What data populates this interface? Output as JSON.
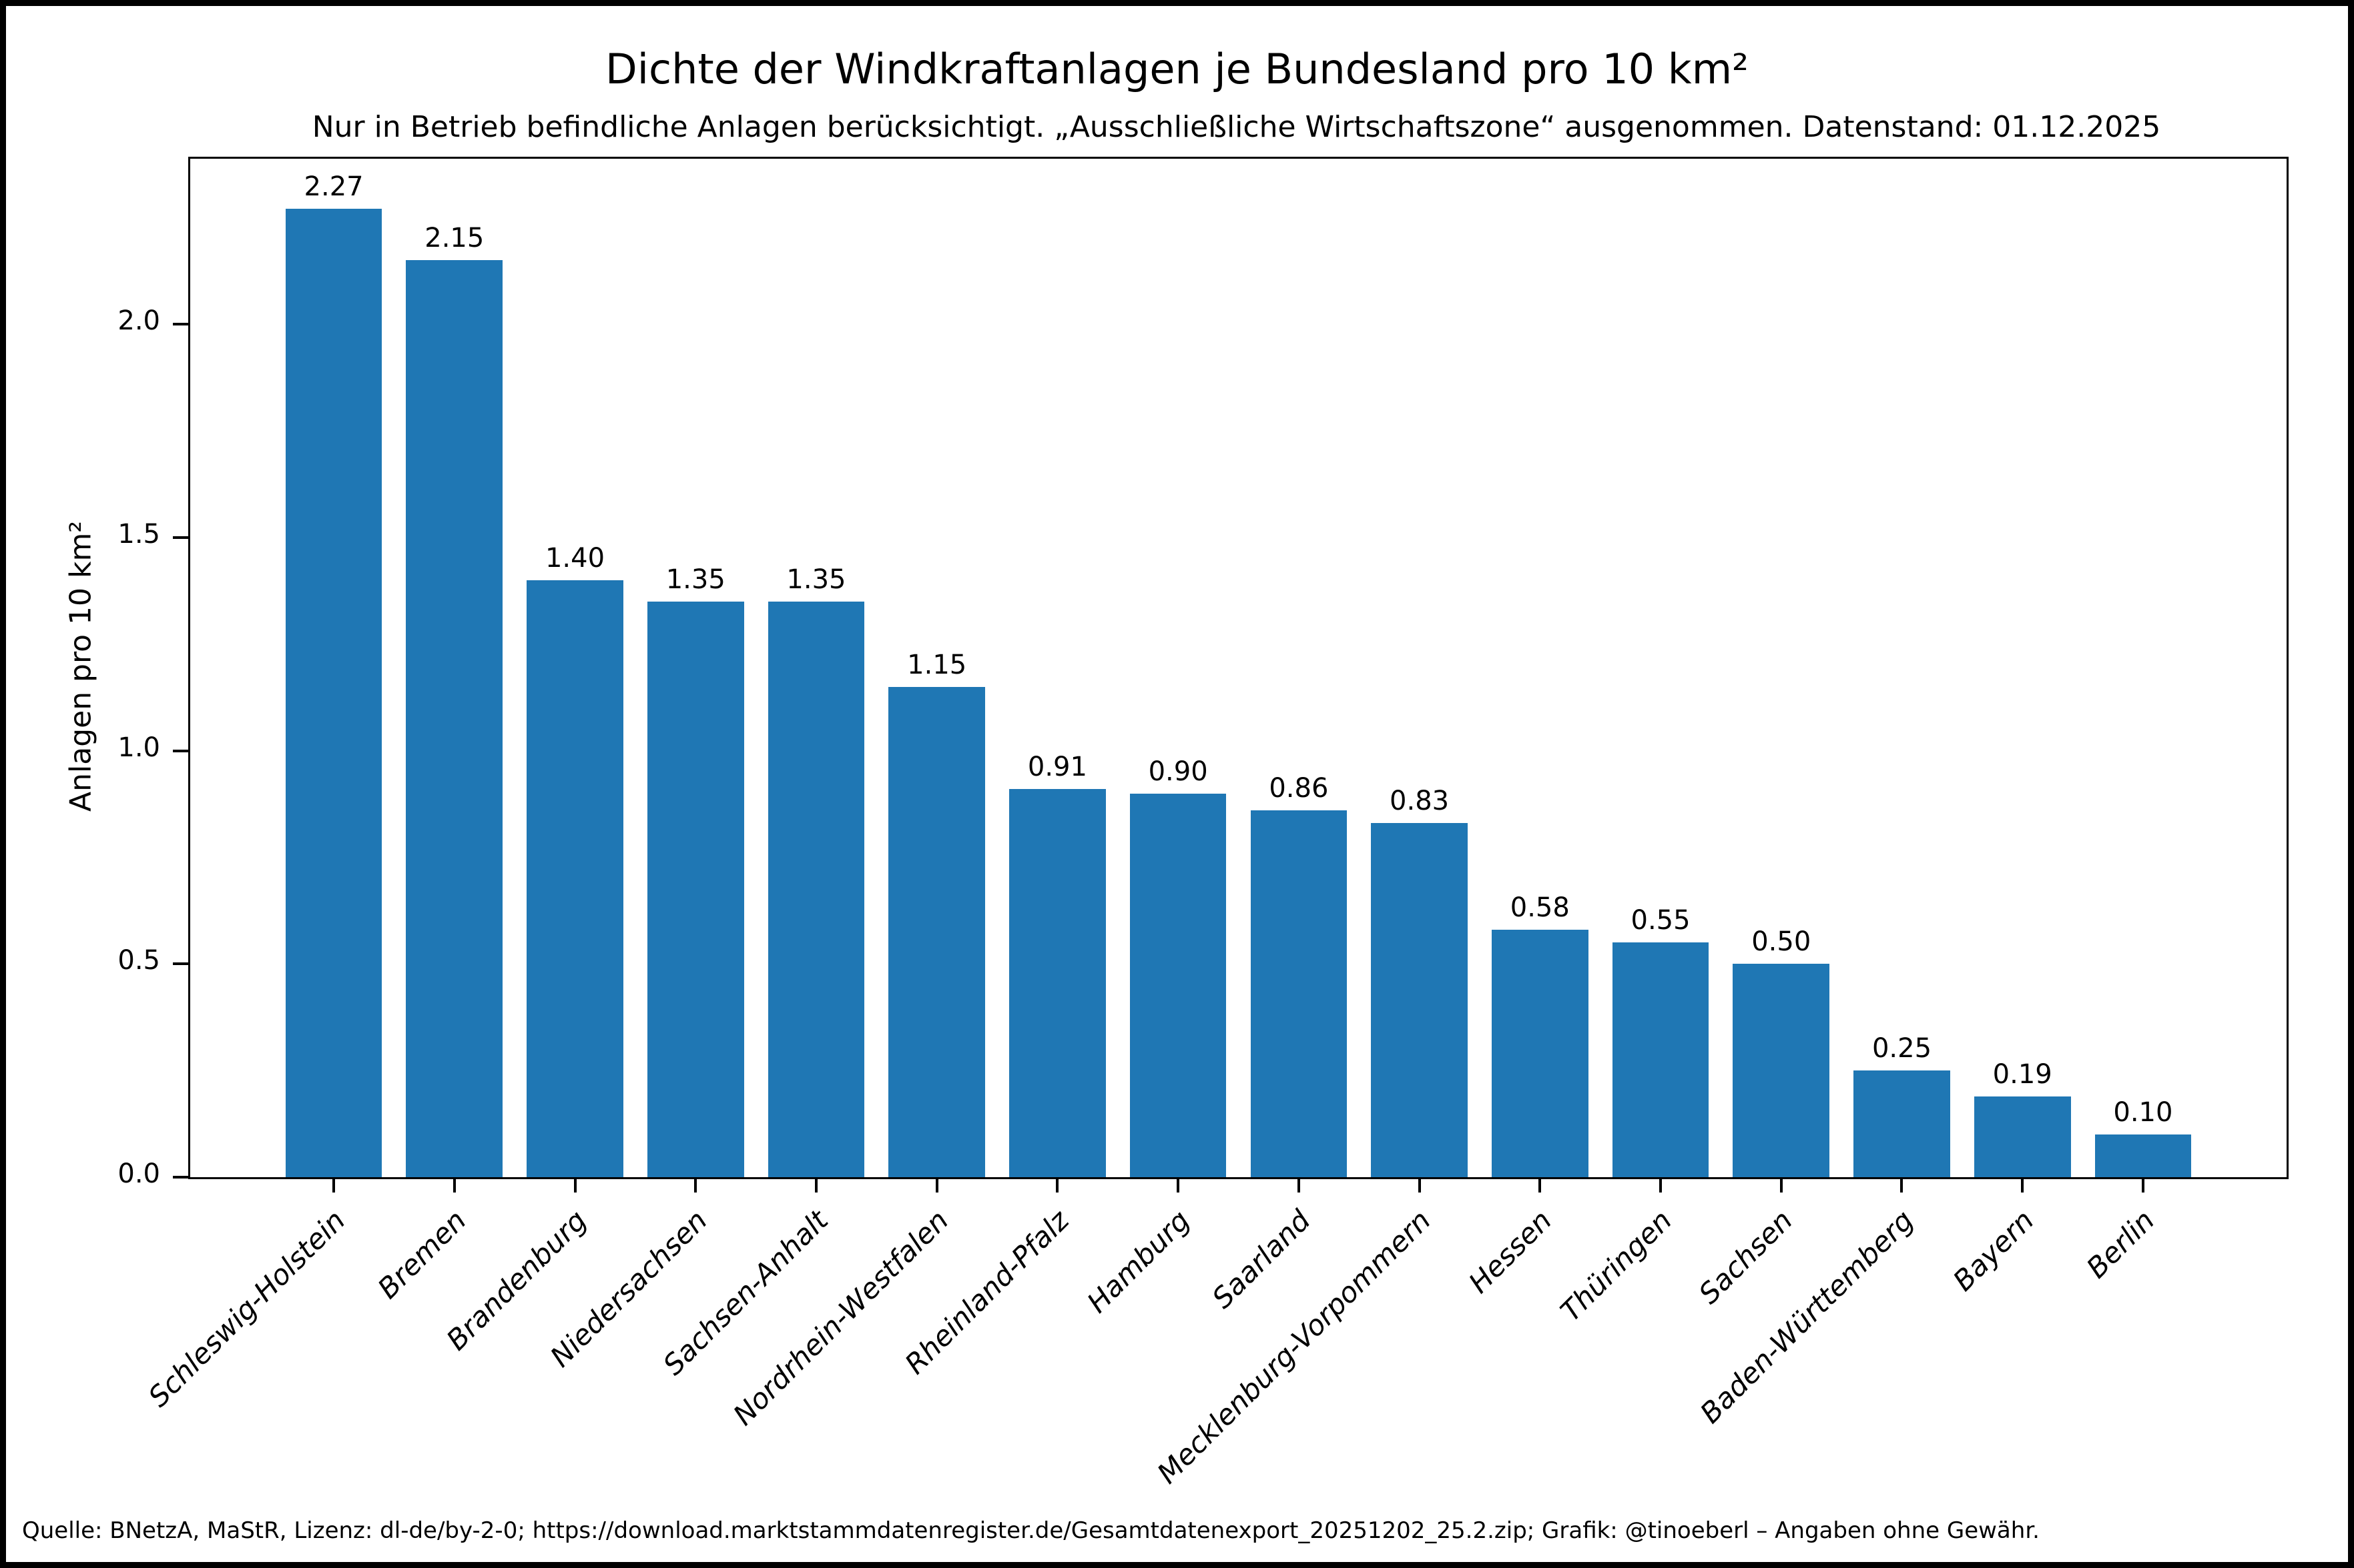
{
  "figure": {
    "footer": "Quelle: BNetzA, MaStR, Lizenz: dl-de/by-2-0; https://download.marktstammdatenregister.de/Gesamtdatenexport_20251202_25.2.zip; Grafik: @tinoeberl – Angaben ohne Gewähr."
  },
  "chart_data": {
    "type": "bar",
    "title": "Dichte der Windkraftanlagen je Bundesland pro 10 km²",
    "subtitle": "Nur in Betrieb befindliche Anlagen berücksichtigt. „Ausschließliche Wirtschaftszone“ ausgenommen. Datenstand: 01.12.2025",
    "xlabel": "",
    "ylabel": "Anlagen pro 10 km²",
    "categories": [
      "Schleswig-Holstein",
      "Bremen",
      "Brandenburg",
      "Niedersachsen",
      "Sachsen-Anhalt",
      "Nordrhein-Westfalen",
      "Rheinland-Pfalz",
      "Hamburg",
      "Saarland",
      "Mecklenburg-Vorpommern",
      "Hessen",
      "Thüringen",
      "Sachsen",
      "Baden-Württemberg",
      "Bayern",
      "Berlin"
    ],
    "values": [
      2.27,
      2.15,
      1.4,
      1.35,
      1.35,
      1.15,
      0.91,
      0.9,
      0.86,
      0.83,
      0.58,
      0.55,
      0.5,
      0.25,
      0.19,
      0.1
    ],
    "yticks": [
      0.0,
      0.5,
      1.0,
      1.5,
      2.0
    ],
    "ylim": [
      0,
      2.388
    ],
    "bar_color": "#1f77b4",
    "bar_width_fraction": 0.8,
    "grid": false,
    "legend_position": "none",
    "value_label_decimals": 2,
    "ytick_decimals": 1
  }
}
